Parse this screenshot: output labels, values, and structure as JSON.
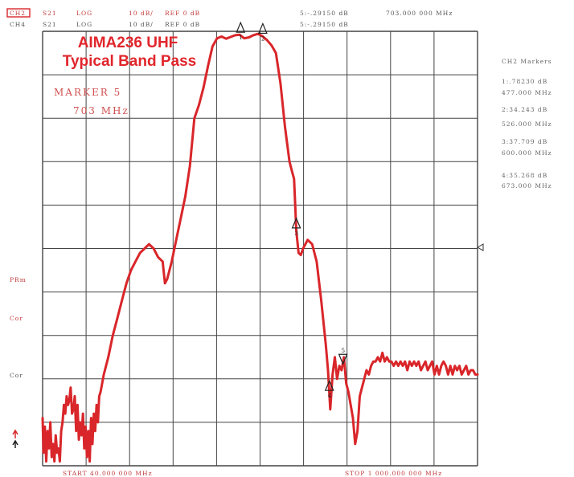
{
  "header": {
    "row1": {
      "channel": "CH2",
      "param": "S21",
      "format": "LOG",
      "scale": "10 dB/",
      "ref": "REF 0 dB",
      "marker_value": "5:-.29150 dB",
      "marker_freq": "703.000 000 MHz"
    },
    "row2": {
      "channel": "CH4",
      "param": "S21",
      "format": "LOG",
      "scale": "10 dB/",
      "ref": "REF 0 dB",
      "marker_value": "5:-.29150 dB"
    }
  },
  "overlay": {
    "title_line1": "AIMA236 UHF",
    "title_line2": "Typical Band Pass",
    "marker_label": "MARKER 5",
    "marker_freq": "703 MHz"
  },
  "left_labels": {
    "pwr": "PRm",
    "cor1": "Cor",
    "cor2": "Cor"
  },
  "sidebar": {
    "title": "CH2 Markers",
    "markers": [
      {
        "value": "1:.78230 dB",
        "freq": "477.000 MHz"
      },
      {
        "value": "2:34.243 dB",
        "freq": "526.000 MHz"
      },
      {
        "value": "3:37.709 dB",
        "freq": "600.000 MHz"
      },
      {
        "value": "4:35.268 dB",
        "freq": "673.000 MHz"
      }
    ]
  },
  "footer": {
    "start": "START 40.000 000 MHz",
    "stop": "STOP 1 000.000 000 MHz"
  },
  "colors": {
    "trace": "#d9262a",
    "grid": "#444444",
    "text": "#c23a3a"
  },
  "chart_data": {
    "type": "line",
    "title": "AIMA236 UHF Typical Band Pass",
    "xlabel": "",
    "ylabel": "",
    "xlim": [
      40,
      1000
    ],
    "ylim": [
      -100,
      0
    ],
    "x_unit": "MHz",
    "y_unit": "dB (10 dB/div, REF 0 dB at top)",
    "grid": true,
    "series": [
      {
        "points": [
          [
            40,
            -89
          ],
          [
            42,
            -97
          ],
          [
            45,
            -91
          ],
          [
            48,
            -99
          ],
          [
            51,
            -92
          ],
          [
            54,
            -96
          ],
          [
            57,
            -90
          ],
          [
            60,
            -98
          ],
          [
            63,
            -95
          ],
          [
            66,
            -99
          ],
          [
            69,
            -93
          ],
          [
            72,
            -97
          ],
          [
            75,
            -96
          ],
          [
            78,
            -99
          ],
          [
            81,
            -92
          ],
          [
            84,
            -90
          ],
          [
            87,
            -86
          ],
          [
            90,
            -88
          ],
          [
            93,
            -84
          ],
          [
            96,
            -86
          ],
          [
            99,
            -85
          ],
          [
            102,
            -82
          ],
          [
            105,
            -88
          ],
          [
            108,
            -87
          ],
          [
            111,
            -84
          ],
          [
            114,
            -92
          ],
          [
            117,
            -86
          ],
          [
            120,
            -94
          ],
          [
            123,
            -90
          ],
          [
            126,
            -93
          ],
          [
            129,
            -88
          ],
          [
            132,
            -96
          ],
          [
            135,
            -91
          ],
          [
            138,
            -98
          ],
          [
            141,
            -92
          ],
          [
            144,
            -99
          ],
          [
            147,
            -89
          ],
          [
            150,
            -95
          ],
          [
            153,
            -88
          ],
          [
            156,
            -92
          ],
          [
            159,
            -86
          ],
          [
            162,
            -90
          ],
          [
            165,
            -84
          ],
          [
            168,
            -83
          ],
          [
            175,
            -79
          ],
          [
            185,
            -75
          ],
          [
            195,
            -70
          ],
          [
            205,
            -66
          ],
          [
            215,
            -62
          ],
          [
            225,
            -58
          ],
          [
            235,
            -55
          ],
          [
            245,
            -53
          ],
          [
            255,
            -51
          ],
          [
            265,
            -50
          ],
          [
            275,
            -49
          ],
          [
            285,
            -50
          ],
          [
            295,
            -52
          ],
          [
            305,
            -53
          ],
          [
            310,
            -58
          ],
          [
            315,
            -57
          ],
          [
            325,
            -53
          ],
          [
            335,
            -48
          ],
          [
            345,
            -43
          ],
          [
            355,
            -38
          ],
          [
            365,
            -31
          ],
          [
            375,
            -20
          ],
          [
            385,
            -17
          ],
          [
            395,
            -13
          ],
          [
            405,
            -8
          ],
          [
            415,
            -3.5
          ],
          [
            425,
            -1.6
          ],
          [
            435,
            -1.2
          ],
          [
            445,
            -1.7
          ],
          [
            455,
            -1.3
          ],
          [
            465,
            -0.9
          ],
          [
            475,
            -0.8
          ],
          [
            485,
            -1.6
          ],
          [
            495,
            -1.4
          ],
          [
            505,
            -0.9
          ],
          [
            515,
            -0.6
          ],
          [
            525,
            -1.1
          ],
          [
            535,
            -2.0
          ],
          [
            545,
            -3.2
          ],
          [
            555,
            -5
          ],
          [
            565,
            -12
          ],
          [
            575,
            -22
          ],
          [
            585,
            -30
          ],
          [
            590,
            -32
          ],
          [
            595,
            -34
          ],
          [
            600,
            -46
          ],
          [
            605,
            -51
          ],
          [
            610,
            -51.5
          ],
          [
            615,
            -50
          ],
          [
            625,
            -48
          ],
          [
            635,
            -49
          ],
          [
            645,
            -53
          ],
          [
            655,
            -62
          ],
          [
            665,
            -72
          ],
          [
            670,
            -78
          ],
          [
            675,
            -87
          ],
          [
            680,
            -79
          ],
          [
            685,
            -75
          ],
          [
            690,
            -80
          ],
          [
            695,
            -77
          ],
          [
            700,
            -78
          ],
          [
            705,
            -75
          ],
          [
            710,
            -81
          ],
          [
            715,
            -83
          ],
          [
            720,
            -86
          ],
          [
            725,
            -89
          ],
          [
            730,
            -95
          ],
          [
            735,
            -92
          ],
          [
            740,
            -84
          ],
          [
            745,
            -82
          ],
          [
            750,
            -80
          ],
          [
            755,
            -78
          ],
          [
            760,
            -79
          ],
          [
            765,
            -77
          ],
          [
            770,
            -76
          ],
          [
            775,
            -76
          ],
          [
            780,
            -75
          ],
          [
            785,
            -76
          ],
          [
            790,
            -74
          ],
          [
            795,
            -76
          ],
          [
            800,
            -75
          ],
          [
            805,
            -76
          ],
          [
            810,
            -76
          ],
          [
            815,
            -77
          ],
          [
            820,
            -76
          ],
          [
            825,
            -77
          ],
          [
            830,
            -76
          ],
          [
            835,
            -77
          ],
          [
            840,
            -76
          ],
          [
            845,
            -78
          ],
          [
            850,
            -76
          ],
          [
            855,
            -77
          ],
          [
            860,
            -76
          ],
          [
            865,
            -77
          ],
          [
            870,
            -76
          ],
          [
            875,
            -78
          ],
          [
            880,
            -77
          ],
          [
            885,
            -76
          ],
          [
            890,
            -78
          ],
          [
            895,
            -77
          ],
          [
            900,
            -76
          ],
          [
            905,
            -79
          ],
          [
            910,
            -77
          ],
          [
            915,
            -79
          ],
          [
            920,
            -77
          ],
          [
            925,
            -76
          ],
          [
            930,
            -77
          ],
          [
            935,
            -79
          ],
          [
            940,
            -77
          ],
          [
            945,
            -79
          ],
          [
            950,
            -77
          ],
          [
            955,
            -78
          ],
          [
            960,
            -77
          ],
          [
            965,
            -79
          ],
          [
            970,
            -78
          ],
          [
            975,
            -77
          ],
          [
            980,
            -79
          ],
          [
            985,
            -78
          ],
          [
            990,
            -78
          ],
          [
            995,
            -79
          ],
          [
            1000,
            -79
          ]
        ]
      }
    ],
    "markers": [
      {
        "id": "1",
        "freq_mhz": 477,
        "dir": "up"
      },
      {
        "id": "2",
        "freq_mhz": 526,
        "dir": "up"
      },
      {
        "id": "3",
        "freq_mhz": 600,
        "dir": "up"
      },
      {
        "id": "4",
        "freq_mhz": 673,
        "dir": "up"
      },
      {
        "id": "5",
        "freq_mhz": 703,
        "dir": "down"
      }
    ]
  }
}
